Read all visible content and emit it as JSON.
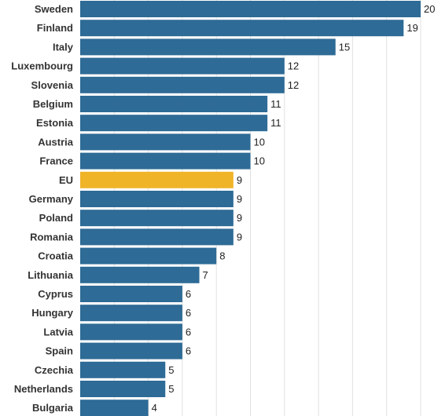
{
  "chart_data": {
    "type": "bar",
    "orientation": "horizontal",
    "categories": [
      "Sweden",
      "Finland",
      "Italy",
      "Luxembourg",
      "Slovenia",
      "Belgium",
      "Estonia",
      "Austria",
      "France",
      "EU",
      "Germany",
      "Poland",
      "Romania",
      "Croatia",
      "Lithuania",
      "Cyprus",
      "Hungary",
      "Latvia",
      "Spain",
      "Czechia",
      "Netherlands",
      "Bulgaria"
    ],
    "values": [
      20,
      19,
      15,
      12,
      12,
      11,
      11,
      10,
      10,
      9,
      9,
      9,
      9,
      8,
      7,
      6,
      6,
      6,
      6,
      5,
      5,
      4
    ],
    "highlight": "EU",
    "xlim": [
      0,
      20
    ],
    "grid": true,
    "title": "",
    "xlabel": "",
    "ylabel": ""
  },
  "colors": {
    "bar": "#2e6b96",
    "highlight": "#f0b429",
    "grid": "#e0e0e0"
  }
}
